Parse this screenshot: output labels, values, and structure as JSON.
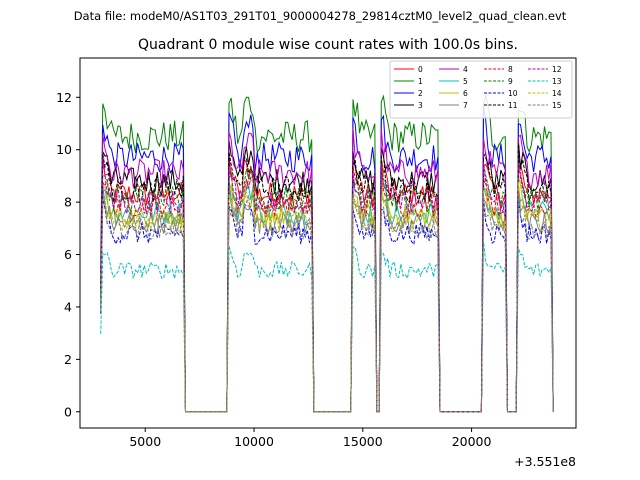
{
  "figure": {
    "suptitle": "Data file: modeM0/AS1T03_291T01_9000004278_29814cztM0_level2_quad_clean.evt"
  },
  "chart_data": {
    "type": "line",
    "title": "Quadrant 0 module wise count rates with 100.0s bins.",
    "xlabel": "",
    "ylabel": "",
    "x_offset_label": "+3.551e8",
    "xlim": [
      2000,
      24800
    ],
    "ylim": [
      -0.62,
      13.5
    ],
    "x_ticks": [
      5000,
      10000,
      15000,
      20000
    ],
    "x_tick_labels": [
      "5000",
      "10000",
      "15000",
      "20000"
    ],
    "y_ticks": [
      0,
      2,
      4,
      6,
      8,
      10,
      12
    ],
    "y_tick_labels": [
      "0",
      "2",
      "4",
      "6",
      "8",
      "10",
      "12"
    ],
    "bin_width_s": 100,
    "x_start": 2950,
    "x_end": 23750,
    "on_segments": [
      [
        3050,
        6750
      ],
      [
        8850,
        12650
      ],
      [
        14550,
        15550
      ],
      [
        15850,
        18450
      ],
      [
        20550,
        21550
      ],
      [
        22150,
        23650
      ]
    ],
    "off_value": 0,
    "legend": {
      "location": "upper right",
      "ncol": 4,
      "entries": [
        "0",
        "1",
        "2",
        "3",
        "4",
        "5",
        "6",
        "7",
        "8",
        "9",
        "10",
        "11",
        "12",
        "13",
        "14",
        "15"
      ]
    },
    "series": [
      {
        "name": "0",
        "color": "#ff0000",
        "style": "solid",
        "level": 8.3
      },
      {
        "name": "1",
        "color": "#008000",
        "style": "solid",
        "level": 10.5
      },
      {
        "name": "2",
        "color": "#0000ff",
        "style": "solid",
        "level": 9.7
      },
      {
        "name": "3",
        "color": "#000000",
        "style": "solid",
        "level": 8.8
      },
      {
        "name": "4",
        "color": "#bf00bf",
        "style": "solid",
        "level": 9.1
      },
      {
        "name": "5",
        "color": "#00bfbf",
        "style": "solid",
        "level": 7.6
      },
      {
        "name": "6",
        "color": "#bfbf00",
        "style": "solid",
        "level": 7.5
      },
      {
        "name": "7",
        "color": "#808080",
        "style": "solid",
        "level": 7.2
      },
      {
        "name": "8",
        "color": "#ff0000",
        "style": "dashed",
        "level": 7.9
      },
      {
        "name": "9",
        "color": "#008000",
        "style": "dashed",
        "level": 8.1
      },
      {
        "name": "10",
        "color": "#0000ff",
        "style": "dashed",
        "level": 6.8
      },
      {
        "name": "11",
        "color": "#000000",
        "style": "dashed",
        "level": 8.5
      },
      {
        "name": "12",
        "color": "#bf00bf",
        "style": "dashed",
        "level": 8.0
      },
      {
        "name": "13",
        "color": "#00bfbf",
        "style": "dashed",
        "level": 5.4
      },
      {
        "name": "14",
        "color": "#bfbf00",
        "style": "dashed",
        "level": 7.3
      },
      {
        "name": "15",
        "color": "#808080",
        "style": "dashed",
        "level": 7.0
      }
    ]
  }
}
